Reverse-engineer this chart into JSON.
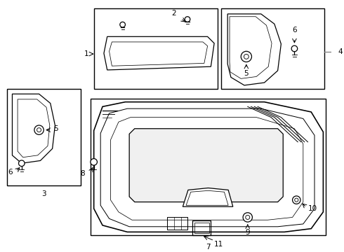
{
  "bg_color": "#ffffff",
  "line_color": "#000000",
  "gray_color": "#888888",
  "boxes": {
    "b1": [
      0.28,
      0.73,
      0.375,
      0.245
    ],
    "b2": [
      0.66,
      0.73,
      0.32,
      0.245
    ],
    "b3": [
      0.01,
      0.4,
      0.225,
      0.3
    ],
    "b4": [
      0.28,
      0.045,
      0.71,
      0.645
    ]
  },
  "label_fontsize": 7.5
}
